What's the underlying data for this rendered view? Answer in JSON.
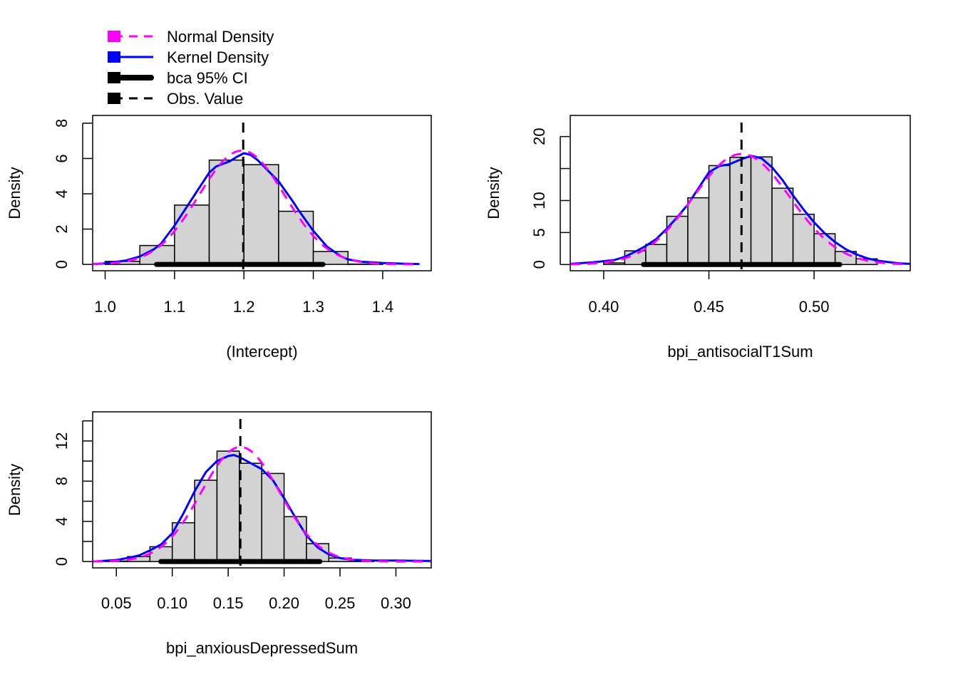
{
  "legend": {
    "entries": [
      {
        "label": "Normal Density",
        "color": "#FF00FF",
        "style": "dashed"
      },
      {
        "label": "Kernel Density",
        "color": "#0000FF",
        "style": "solid"
      },
      {
        "label": "bca 95% CI",
        "color": "#000000",
        "style": "thick"
      },
      {
        "label": "Obs. Value",
        "color": "#000000",
        "style": "dashed"
      }
    ],
    "placement": "top-left"
  },
  "colors": {
    "bar_fill": "#D3D3D3",
    "bar_stroke": "#000000",
    "normal": "#FF00FF",
    "kernel": "#0000FF",
    "ci": "#000000",
    "obs": "#000000"
  },
  "chart_data": [
    {
      "type": "bar",
      "subtype": "histogram",
      "title": "",
      "xlabel": "(Intercept)",
      "ylabel": "Density",
      "xlim": [
        0.982,
        1.47
      ],
      "ylim": [
        -0.36,
        8.44
      ],
      "xticks": [
        1.0,
        1.1,
        1.2,
        1.3,
        1.4
      ],
      "xtick_labels": [
        "1.0",
        "1.1",
        "1.2",
        "1.3",
        "1.4"
      ],
      "yticks": [
        0,
        2,
        4,
        6,
        8
      ],
      "ytick_labels": [
        "0",
        "2",
        "4",
        "6",
        "8"
      ],
      "bins": [
        1.0,
        1.05,
        1.1,
        1.15,
        1.2,
        1.25,
        1.3,
        1.35,
        1.4
      ],
      "values": [
        0.17,
        1.07,
        3.36,
        5.91,
        5.65,
        3.01,
        0.73,
        0.02
      ],
      "normal_density": {
        "mean": 1.197,
        "sd": 0.0619,
        "range": [
          0.983,
          1.453
        ]
      },
      "kernel_density": {
        "x": [
          0.983,
          1.0,
          1.03,
          1.05,
          1.07,
          1.08,
          1.1,
          1.12,
          1.14,
          1.15,
          1.16,
          1.17,
          1.18,
          1.19,
          1.2,
          1.21,
          1.22,
          1.24,
          1.25,
          1.27,
          1.28,
          1.3,
          1.32,
          1.34,
          1.35,
          1.37,
          1.4,
          1.43,
          1.453
        ],
        "y": [
          0.02,
          0.06,
          0.22,
          0.45,
          0.85,
          1.15,
          2.2,
          3.4,
          4.6,
          5.2,
          5.55,
          5.7,
          5.85,
          6.1,
          6.3,
          6.2,
          5.9,
          5.1,
          4.7,
          3.6,
          3.0,
          1.9,
          1.0,
          0.45,
          0.28,
          0.15,
          0.08,
          0.04,
          0.02
        ]
      },
      "ci": [
        1.074,
        1.314
      ],
      "obs_value": 1.199
    },
    {
      "type": "bar",
      "subtype": "histogram",
      "title": "",
      "xlabel": "bpi_antisocialT1Sum",
      "ylabel": "Density",
      "xlim": [
        0.3841,
        0.5457
      ],
      "ylim": [
        -0.97,
        23.3
      ],
      "xticks": [
        0.4,
        0.45,
        0.5
      ],
      "xtick_labels": [
        "0.40",
        "0.45",
        "0.50"
      ],
      "yticks": [
        0,
        5,
        10,
        15,
        20
      ],
      "ytick_labels": [
        "0",
        "5",
        "10",
        "",
        "20"
      ],
      "bins": [
        0.4,
        0.41,
        0.42,
        0.43,
        0.44,
        0.45,
        0.46,
        0.47,
        0.48,
        0.49,
        0.5,
        0.51,
        0.52,
        0.53
      ],
      "values": [
        0.25,
        2.14,
        3.14,
        7.54,
        10.43,
        15.46,
        16.75,
        16.82,
        11.93,
        7.86,
        4.82,
        2.04,
        0.89
      ],
      "normal_density": {
        "mean": 0.4655,
        "sd": 0.0231,
        "range": [
          0.3841,
          0.5457
        ]
      },
      "kernel_density": {
        "x": [
          0.3841,
          0.395,
          0.405,
          0.41,
          0.415,
          0.42,
          0.425,
          0.43,
          0.435,
          0.44,
          0.445,
          0.45,
          0.455,
          0.46,
          0.465,
          0.47,
          0.475,
          0.48,
          0.485,
          0.49,
          0.495,
          0.5,
          0.505,
          0.51,
          0.515,
          0.52,
          0.525,
          0.53,
          0.54,
          0.5457
        ],
        "y": [
          0.1,
          0.35,
          0.7,
          1.2,
          2.0,
          2.9,
          4.0,
          5.6,
          7.4,
          9.4,
          11.9,
          14.4,
          15.4,
          15.7,
          16.4,
          17.0,
          16.6,
          15.2,
          13.2,
          10.8,
          8.6,
          6.6,
          4.9,
          3.5,
          2.4,
          1.6,
          1.0,
          0.6,
          0.2,
          0.1
        ]
      },
      "ci": [
        0.4189,
        0.5122
      ],
      "obs_value": 0.4655
    },
    {
      "type": "bar",
      "subtype": "histogram",
      "title": "",
      "xlabel": "bpi_anxiousDepressedSum",
      "ylabel": "Density",
      "xlim": [
        0.0288,
        0.3316
      ],
      "ylim": [
        -0.63,
        14.9
      ],
      "xticks": [
        0.05,
        0.1,
        0.15,
        0.2,
        0.25,
        0.3
      ],
      "xtick_labels": [
        "0.05",
        "0.10",
        "0.15",
        "0.20",
        "0.25",
        "0.30"
      ],
      "yticks": [
        0,
        2,
        4,
        6,
        8,
        10,
        12,
        14
      ],
      "ytick_labels": [
        "0",
        "",
        "4",
        "",
        "8",
        "",
        "12",
        ""
      ],
      "bins": [
        0.04,
        0.06,
        0.08,
        0.1,
        0.12,
        0.14,
        0.16,
        0.18,
        0.2,
        0.22,
        0.24,
        0.26,
        0.28
      ],
      "values": [
        0.05,
        0.49,
        1.47,
        3.86,
        8.09,
        10.99,
        9.78,
        8.77,
        4.47,
        1.78,
        0.35,
        0.05
      ],
      "normal_density": {
        "mean": 0.161,
        "sd": 0.035,
        "range": [
          0.0288,
          0.3316
        ]
      },
      "kernel_density": {
        "x": [
          0.033,
          0.05,
          0.06,
          0.07,
          0.08,
          0.09,
          0.1,
          0.11,
          0.12,
          0.13,
          0.14,
          0.15,
          0.155,
          0.16,
          0.17,
          0.18,
          0.19,
          0.2,
          0.21,
          0.22,
          0.23,
          0.24,
          0.25,
          0.26,
          0.28,
          0.3,
          0.3316
        ],
        "y": [
          0.02,
          0.15,
          0.35,
          0.6,
          1.1,
          1.7,
          2.8,
          4.8,
          7.0,
          8.9,
          10.0,
          10.5,
          10.6,
          10.4,
          9.8,
          9.2,
          8.1,
          6.3,
          4.4,
          2.6,
          1.4,
          0.7,
          0.35,
          0.18,
          0.1,
          0.1,
          0.05
        ]
      },
      "ci": [
        0.0898,
        0.232
      ],
      "obs_value": 0.1609
    }
  ]
}
